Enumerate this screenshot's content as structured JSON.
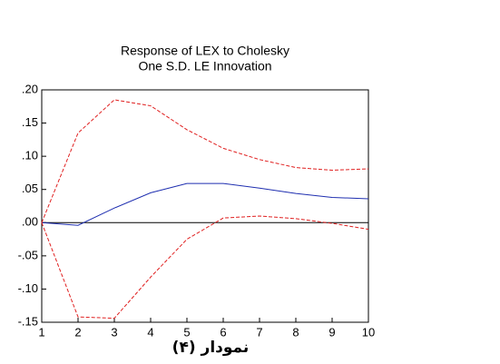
{
  "chart_data": {
    "type": "line",
    "title": "Response of LEX to Cholesky",
    "subtitle": "One S.D. LE Innovation",
    "caption": "نمودار (۴)",
    "x": [
      1,
      2,
      3,
      4,
      5,
      6,
      7,
      8,
      9,
      10
    ],
    "xlim": [
      1,
      10
    ],
    "xticks": [
      1,
      2,
      3,
      4,
      5,
      6,
      7,
      8,
      9,
      10
    ],
    "ylim": [
      -0.15,
      0.2
    ],
    "yticks": [
      {
        "value": 0.2,
        "label": ".20"
      },
      {
        "value": 0.15,
        "label": ".15"
      },
      {
        "value": 0.1,
        "label": ".10"
      },
      {
        "value": 0.05,
        "label": ".05"
      },
      {
        "value": 0,
        "label": ".00"
      },
      {
        "value": -0.05,
        "label": "-.05"
      },
      {
        "value": -0.1,
        "label": "-.10"
      },
      {
        "value": -0.15,
        "label": "-.15"
      }
    ],
    "reference_line": 0,
    "series": [
      {
        "color": "#1f2fb0",
        "dashed": false,
        "values": [
          0.0,
          -0.004,
          0.022,
          0.045,
          0.059,
          0.059,
          0.052,
          0.044,
          0.038,
          0.036
        ]
      },
      {
        "color": "#e02020",
        "dashed": true,
        "values": [
          0.0,
          0.135,
          0.185,
          0.176,
          0.14,
          0.112,
          0.095,
          0.083,
          0.079,
          0.081
        ]
      },
      {
        "color": "#e02020",
        "dashed": true,
        "values": [
          0.0,
          -0.142,
          -0.144,
          -0.082,
          -0.025,
          0.007,
          0.01,
          0.006,
          -0.001,
          -0.01
        ]
      }
    ]
  }
}
